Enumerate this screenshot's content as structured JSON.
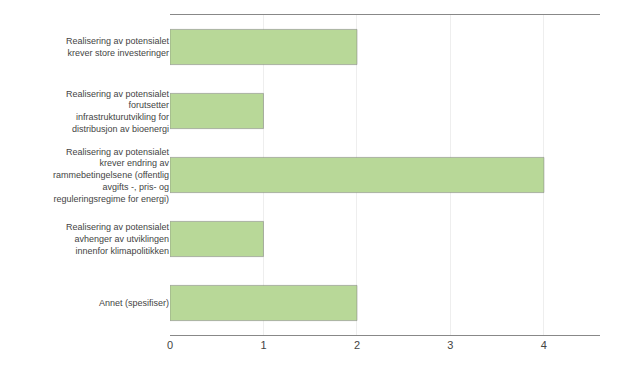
{
  "chart_data": {
    "type": "bar",
    "orientation": "horizontal",
    "categories": [
      "Realisering av potensialet\nkrever store investeringer",
      "Realisering av potensialet\nforutsetter\ninfrastrukturutvikling for\ndistribusjon av bioenergi",
      "Realisering av potensialet\nkrever endring av\nrammebetingelsene (offentlig\navgifts -, pris- og\nreguleringsregime for energi)",
      "Realisering av potensialet\navhenger av utviklingen\ninnenfor klimapolitikken",
      "Annet (spesifiser)"
    ],
    "values": [
      2,
      1,
      4,
      1,
      2
    ],
    "color": "#b8d898",
    "xlim": [
      0,
      4.6
    ],
    "xticks": [
      0,
      1,
      2,
      3,
      4
    ],
    "grid": true
  }
}
